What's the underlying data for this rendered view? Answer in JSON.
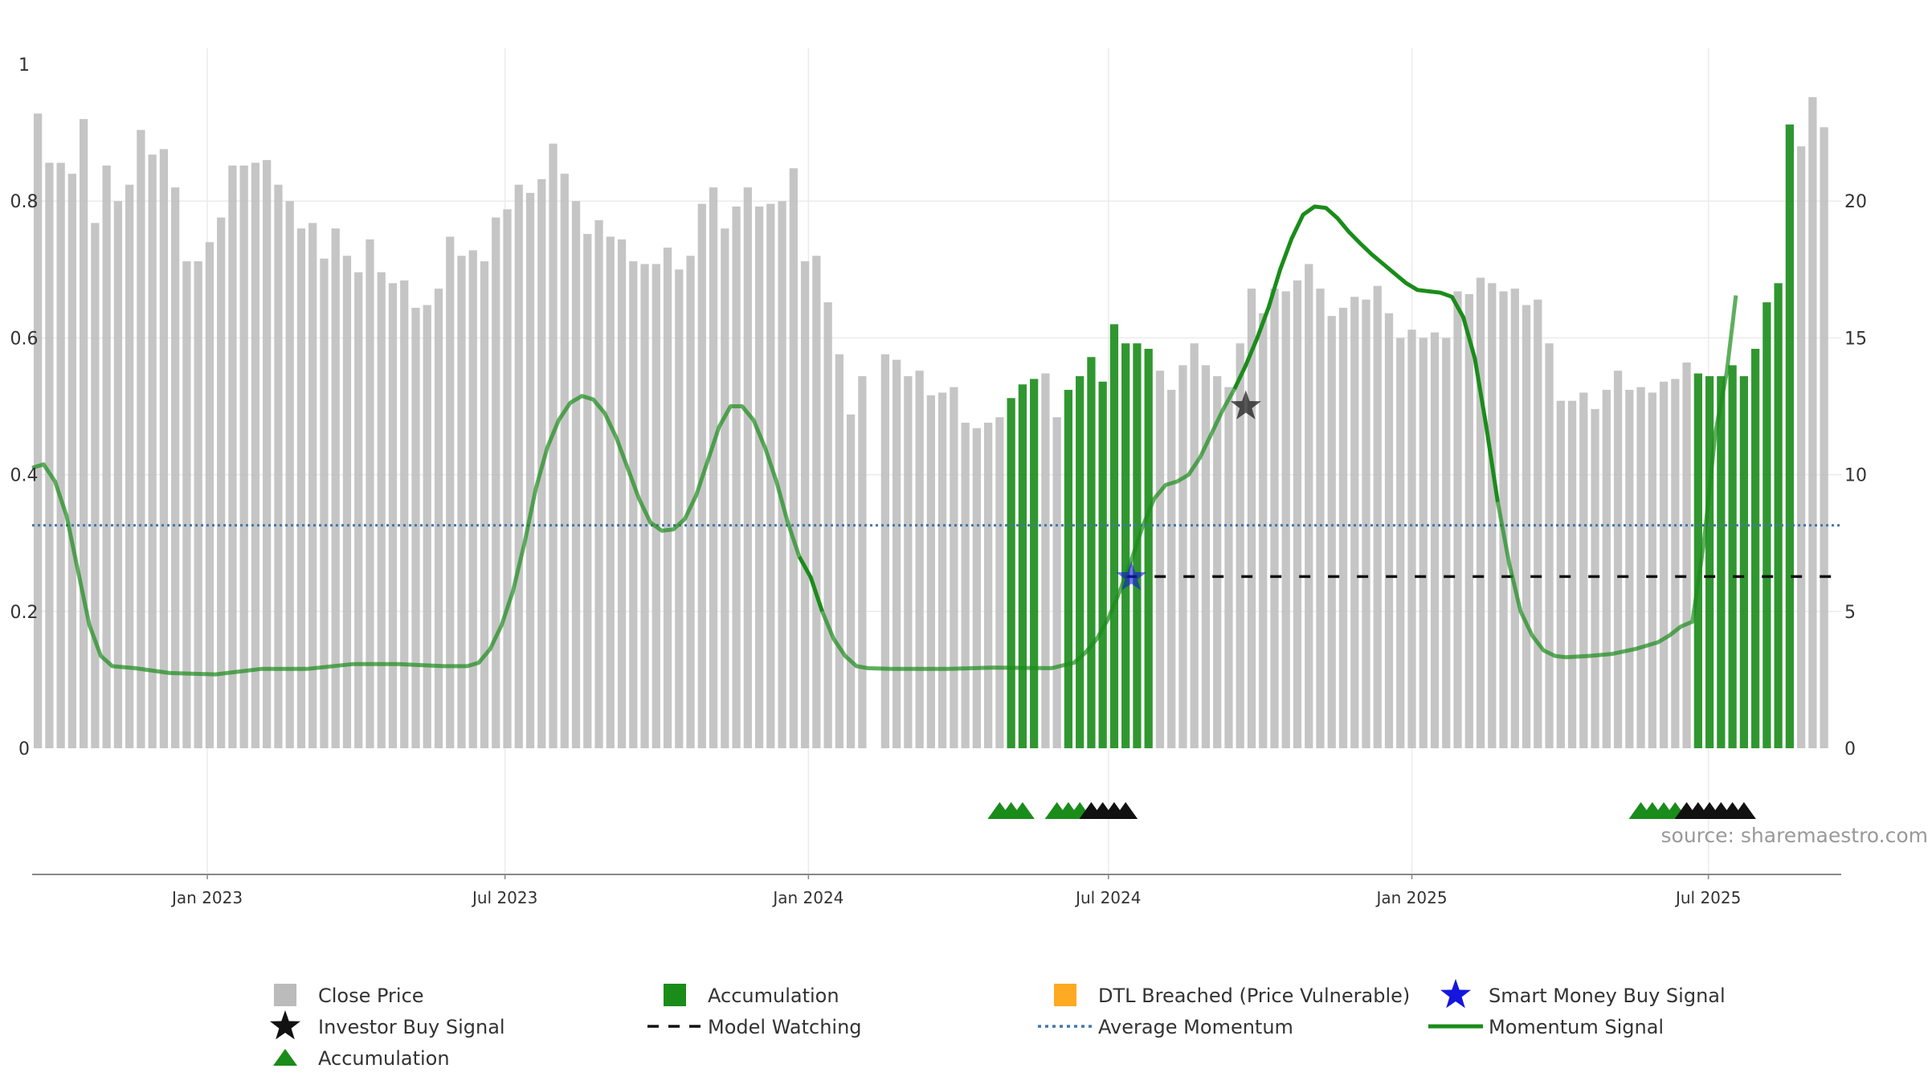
{
  "chart_data": {
    "type": "bar",
    "title": "",
    "xlabel": "",
    "ylabel": "",
    "source": "source: sharemaestro.com",
    "left_axis": {
      "ylim": [
        0,
        1
      ],
      "ticks": [
        "0",
        "0.2",
        "0.4",
        "0.6",
        "0.8",
        "1"
      ],
      "tick_values": [
        0,
        0.2,
        0.4,
        0.6,
        0.8,
        1.0
      ]
    },
    "right_axis": {
      "ylim": [
        0,
        25
      ],
      "ticks": [
        "0",
        "5",
        "10",
        "15",
        "20"
      ],
      "tick_values": [
        0,
        5,
        10,
        15,
        20
      ]
    },
    "x_range_weeks": [
      0,
      158
    ],
    "x_ticks": [
      {
        "label": "Jan 2023",
        "week": 15.3
      },
      {
        "label": "Jul 2023",
        "week": 41.3
      },
      {
        "label": "Jan 2024",
        "week": 67.8
      },
      {
        "label": "Jul 2024",
        "week": 94.0
      },
      {
        "label": "Jan 2025",
        "week": 120.5
      },
      {
        "label": "Jul 2025",
        "week": 146.4
      }
    ],
    "colors": {
      "close": "#bfbfbf",
      "accum": "#1a8c1a",
      "momentum": "#1a8c1a",
      "average": "#4477aa",
      "model": "#111111",
      "investor": "#111111",
      "smart": "#1515dd",
      "dtl": "#ffaa22"
    },
    "close_price_series": {
      "name": "Close Price",
      "values": [
        23.2,
        21.4,
        21.4,
        21.0,
        23.0,
        19.2,
        21.3,
        20.0,
        20.6,
        22.6,
        21.7,
        21.9,
        20.5,
        17.8,
        17.8,
        18.5,
        19.4,
        21.3,
        21.3,
        21.4,
        21.5,
        20.6,
        20.0,
        19.0,
        19.2,
        17.9,
        19.0,
        18.0,
        17.4,
        18.6,
        17.4,
        17.0,
        17.1,
        16.1,
        16.2,
        16.8,
        18.7,
        18.0,
        18.2,
        17.8,
        19.4,
        19.7,
        20.6,
        20.3,
        20.8,
        22.1,
        21.0,
        20.0,
        18.8,
        19.3,
        18.7,
        18.6,
        17.8,
        17.7,
        17.7,
        18.3,
        17.5,
        18.0,
        19.9,
        20.5,
        19.0,
        19.8,
        20.5,
        19.8,
        19.9,
        20.0,
        21.2,
        17.8,
        18.0,
        16.3,
        14.4,
        12.2,
        13.6,
        0,
        14.4,
        14.2,
        13.6,
        13.8,
        12.9,
        13.0,
        13.2,
        11.9,
        11.7,
        11.9,
        12.1,
        12.8,
        13.3,
        13.5,
        13.7,
        12.1,
        13.1,
        13.6,
        14.3,
        13.4,
        15.5,
        14.8,
        14.8,
        14.6,
        13.8,
        13.1,
        14.0,
        14.8,
        14.0,
        13.6,
        13.2,
        14.8,
        16.8,
        15.9,
        16.8,
        16.7,
        17.1,
        17.7,
        16.8,
        15.8,
        16.1,
        16.5,
        16.4,
        16.9,
        15.9,
        15.0,
        15.3,
        15.0,
        15.2,
        15.0,
        16.7,
        16.6,
        17.2,
        17.0,
        16.7,
        16.8,
        16.2,
        16.4,
        14.8,
        12.7,
        12.7,
        13.0,
        12.4,
        13.1,
        13.8,
        13.1,
        13.2,
        13.0,
        13.4,
        13.5,
        14.1,
        13.7,
        13.6,
        13.6,
        14.0,
        13.6,
        14.6,
        16.3,
        17.0,
        22.8,
        22.0,
        23.8,
        22.7
      ],
      "accumulation_weeks": [
        85,
        86,
        87,
        90,
        91,
        92,
        93,
        94,
        95,
        96,
        97,
        145,
        146,
        147,
        148,
        149,
        150,
        151,
        152,
        153
      ]
    },
    "momentum_signal": {
      "name": "Momentum Signal",
      "points": [
        [
          0,
          0.41
        ],
        [
          1,
          0.415
        ],
        [
          2,
          0.39
        ],
        [
          3,
          0.34
        ],
        [
          4,
          0.26
        ],
        [
          5,
          0.18
        ],
        [
          6,
          0.135
        ],
        [
          7,
          0.12
        ],
        [
          9,
          0.117
        ],
        [
          12,
          0.11
        ],
        [
          16,
          0.108
        ],
        [
          20,
          0.116
        ],
        [
          24,
          0.116
        ],
        [
          28,
          0.123
        ],
        [
          32,
          0.123
        ],
        [
          36,
          0.12
        ],
        [
          38,
          0.12
        ],
        [
          39,
          0.125
        ],
        [
          40,
          0.145
        ],
        [
          41,
          0.18
        ],
        [
          42,
          0.23
        ],
        [
          43,
          0.3
        ],
        [
          44,
          0.38
        ],
        [
          45,
          0.44
        ],
        [
          46,
          0.48
        ],
        [
          47,
          0.505
        ],
        [
          48,
          0.515
        ],
        [
          49,
          0.51
        ],
        [
          50,
          0.49
        ],
        [
          51,
          0.455
        ],
        [
          52,
          0.41
        ],
        [
          53,
          0.365
        ],
        [
          54,
          0.33
        ],
        [
          55,
          0.318
        ],
        [
          56,
          0.32
        ],
        [
          57,
          0.335
        ],
        [
          58,
          0.37
        ],
        [
          59,
          0.42
        ],
        [
          60,
          0.47
        ],
        [
          61,
          0.5
        ],
        [
          62,
          0.5
        ],
        [
          63,
          0.48
        ],
        [
          64,
          0.44
        ],
        [
          65,
          0.39
        ],
        [
          66,
          0.33
        ],
        [
          67,
          0.28
        ],
        [
          68,
          0.25
        ],
        [
          69,
          0.2
        ],
        [
          70,
          0.16
        ],
        [
          71,
          0.135
        ],
        [
          72,
          0.12
        ],
        [
          73,
          0.117
        ],
        [
          75,
          0.116
        ],
        [
          80,
          0.116
        ],
        [
          84,
          0.118
        ],
        [
          89,
          0.117
        ],
        [
          91,
          0.125
        ],
        [
          92,
          0.14
        ],
        [
          93,
          0.16
        ],
        [
          94,
          0.19
        ],
        [
          95,
          0.23
        ],
        [
          96,
          0.275
        ],
        [
          97,
          0.325
        ],
        [
          98,
          0.365
        ],
        [
          99,
          0.385
        ],
        [
          100,
          0.39
        ],
        [
          101,
          0.4
        ],
        [
          102,
          0.425
        ],
        [
          103,
          0.46
        ],
        [
          104,
          0.495
        ],
        [
          105,
          0.525
        ],
        [
          106,
          0.56
        ],
        [
          107,
          0.6
        ],
        [
          108,
          0.645
        ],
        [
          109,
          0.7
        ],
        [
          110,
          0.745
        ],
        [
          111,
          0.78
        ],
        [
          112,
          0.792
        ],
        [
          113,
          0.79
        ],
        [
          114,
          0.775
        ],
        [
          115,
          0.755
        ],
        [
          116,
          0.738
        ],
        [
          117,
          0.722
        ],
        [
          118,
          0.708
        ],
        [
          119,
          0.694
        ],
        [
          120,
          0.68
        ],
        [
          121,
          0.67
        ],
        [
          122,
          0.668
        ],
        [
          123,
          0.666
        ],
        [
          124,
          0.66
        ],
        [
          125,
          0.63
        ],
        [
          126,
          0.57
        ],
        [
          127,
          0.47
        ],
        [
          128,
          0.36
        ],
        [
          129,
          0.27
        ],
        [
          130,
          0.2
        ],
        [
          131,
          0.165
        ],
        [
          132,
          0.143
        ],
        [
          133,
          0.135
        ],
        [
          134,
          0.133
        ],
        [
          136,
          0.135
        ],
        [
          138,
          0.138
        ],
        [
          140,
          0.145
        ],
        [
          142,
          0.155
        ],
        [
          143,
          0.165
        ],
        [
          144,
          0.178
        ],
        [
          145,
          0.185
        ],
        [
          146,
          0.3
        ],
        [
          147,
          0.46
        ],
        [
          148,
          0.55
        ],
        [
          148.8,
          0.662
        ]
      ]
    },
    "average_momentum": {
      "name": "Average Momentum",
      "value": 0.326
    },
    "model_watching": {
      "name": "Model Watching",
      "value": 0.251,
      "start_week": 95.5,
      "end_week": 157.5
    },
    "investor_buy_signal": {
      "name": "Investor Buy Signal",
      "points": [
        [
          106,
          0.5
        ]
      ]
    },
    "smart_money_buy_signal": {
      "name": "Smart Money Buy Signal",
      "points": [
        [
          96,
          0.25
        ]
      ]
    },
    "accumulation_markers": {
      "green_weeks": [
        84.5,
        85.5,
        86.5,
        89.5,
        90.5,
        91.5,
        140.5,
        141.5,
        142.5,
        143.5
      ],
      "black_weeks": [
        92.5,
        93.5,
        94.5,
        95.5,
        144.5,
        145.5,
        146.5,
        147.5,
        148.5,
        149.5
      ]
    },
    "legend": [
      {
        "label": "Close Price",
        "symbol": "square",
        "color": "#bbbbbb"
      },
      {
        "label": "Accumulation",
        "symbol": "square",
        "color": "#1a8c1a"
      },
      {
        "label": "DTL Breached (Price Vulnerable)",
        "symbol": "square",
        "color": "#ffaa22"
      },
      {
        "label": "Smart Money Buy Signal",
        "symbol": "star",
        "color": "#1515dd"
      },
      {
        "label": "Investor Buy Signal",
        "symbol": "star",
        "color": "#111111"
      },
      {
        "label": "Model Watching",
        "symbol": "dash",
        "color": "#111111"
      },
      {
        "label": "Average Momentum",
        "symbol": "dot",
        "color": "#4477aa"
      },
      {
        "label": "Momentum Signal",
        "symbol": "line",
        "color": "#1a8c1a"
      },
      {
        "label": "Accumulation",
        "symbol": "triangle",
        "color": "#1a8c1a"
      }
    ]
  }
}
